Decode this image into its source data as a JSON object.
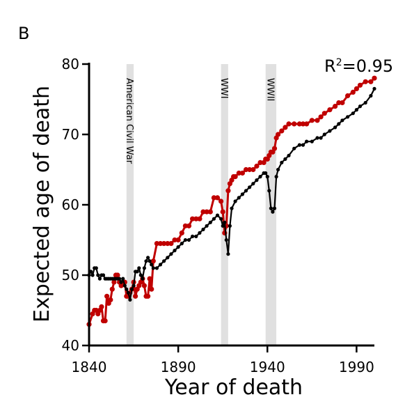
{
  "panel_label": "B",
  "chart_data": {
    "type": "line",
    "xlabel": "Year of death",
    "ylabel": "Expected age of death",
    "xlim": [
      1840,
      2000
    ],
    "ylim": [
      40,
      80
    ],
    "xticks": [
      1840,
      1890,
      1940,
      1990
    ],
    "yticks": [
      40,
      50,
      60,
      70,
      80
    ],
    "grid": false,
    "annotation": {
      "prefix": "R",
      "superscript": "2",
      "suffix": "=0.95"
    },
    "events": [
      {
        "label": "American Civil War",
        "start": 1861,
        "end": 1865
      },
      {
        "label": "WWI",
        "start": 1914,
        "end": 1918
      },
      {
        "label": "WWII",
        "start": 1939,
        "end": 1945
      }
    ],
    "colors": {
      "series_red": "#c00000",
      "series_black": "#000000",
      "shade": "#e0e0e0"
    },
    "series": [
      {
        "color": "#c00000",
        "x": [
          1840,
          1842,
          1843,
          1844,
          1845,
          1846,
          1847,
          1848,
          1849,
          1850,
          1851,
          1852,
          1853,
          1854,
          1855,
          1856,
          1857,
          1858,
          1859,
          1860,
          1861,
          1862,
          1863,
          1864,
          1865,
          1866,
          1867,
          1868,
          1869,
          1870,
          1871,
          1872,
          1873,
          1874,
          1875,
          1876,
          1878,
          1880,
          1882,
          1884,
          1886,
          1888,
          1890,
          1892,
          1894,
          1896,
          1898,
          1900,
          1902,
          1904,
          1906,
          1908,
          1910,
          1912,
          1914,
          1915,
          1916,
          1917,
          1918,
          1919,
          1920,
          1921,
          1922,
          1924,
          1926,
          1928,
          1930,
          1932,
          1934,
          1936,
          1938,
          1939,
          1940,
          1941,
          1942,
          1943,
          1944,
          1945,
          1946,
          1948,
          1950,
          1952,
          1955,
          1958,
          1960,
          1962,
          1965,
          1968,
          1970,
          1972,
          1975,
          1978,
          1980,
          1982,
          1985,
          1988,
          1990,
          1992,
          1995,
          1998,
          2000
        ],
        "y": [
          43,
          44.5,
          45,
          45,
          44.5,
          45,
          45.5,
          43.5,
          43.5,
          47,
          46,
          46.5,
          48,
          49,
          50,
          50,
          49,
          48.5,
          49,
          49,
          47,
          47,
          47.5,
          48,
          49,
          47,
          48,
          48.5,
          49,
          49.5,
          48.5,
          47,
          47,
          49.5,
          48,
          52,
          54.5,
          54.5,
          54.5,
          54.5,
          54.5,
          55,
          55,
          56,
          57,
          57,
          58,
          58,
          58,
          59,
          59,
          59,
          61,
          61,
          60.5,
          59,
          56,
          57,
          62,
          63,
          63.5,
          64,
          64,
          64.5,
          64.5,
          65,
          65,
          65,
          65.5,
          66,
          66,
          66.5,
          66.5,
          67,
          67.5,
          67.5,
          68,
          69.5,
          70,
          70.5,
          71,
          71.5,
          71.5,
          71.5,
          71.5,
          71.5,
          72,
          72,
          72.5,
          73,
          73.5,
          74,
          74.5,
          74.5,
          75.5,
          76,
          76.5,
          77,
          77.5,
          77.5,
          78
        ]
      },
      {
        "color": "#000000",
        "x": [
          1840,
          1841,
          1842,
          1843,
          1844,
          1845,
          1846,
          1847,
          1848,
          1849,
          1850,
          1851,
          1852,
          1853,
          1854,
          1855,
          1856,
          1857,
          1858,
          1859,
          1860,
          1861,
          1862,
          1863,
          1864,
          1865,
          1866,
          1867,
          1868,
          1869,
          1870,
          1871,
          1872,
          1873,
          1874,
          1875,
          1876,
          1878,
          1880,
          1882,
          1884,
          1886,
          1888,
          1890,
          1892,
          1894,
          1896,
          1898,
          1900,
          1902,
          1904,
          1906,
          1908,
          1910,
          1912,
          1914,
          1915,
          1916,
          1917,
          1918,
          1919,
          1920,
          1922,
          1924,
          1926,
          1928,
          1930,
          1932,
          1934,
          1936,
          1938,
          1939,
          1940,
          1941,
          1942,
          1943,
          1944,
          1945,
          1946,
          1948,
          1950,
          1952,
          1955,
          1958,
          1960,
          1962,
          1965,
          1968,
          1970,
          1972,
          1975,
          1978,
          1980,
          1982,
          1985,
          1988,
          1990,
          1992,
          1995,
          1998,
          2000
        ],
        "y": [
          50,
          50.5,
          50,
          51,
          51,
          50,
          49.5,
          50,
          50,
          49.5,
          49.5,
          49.5,
          49.5,
          49.5,
          49.5,
          49.5,
          49.5,
          49.5,
          49,
          49.5,
          48.5,
          48,
          47.5,
          46.5,
          48,
          48.5,
          50.5,
          50.5,
          51,
          50,
          49.5,
          51,
          52,
          52.5,
          52,
          51.5,
          51,
          51,
          51.5,
          52,
          52.5,
          53,
          53.5,
          54,
          54.5,
          55,
          55,
          55.5,
          55.5,
          56,
          56.5,
          57,
          57.5,
          58,
          58.5,
          58,
          57,
          57.5,
          55,
          53,
          57,
          59.5,
          60.5,
          61,
          61.5,
          62,
          62.5,
          63,
          63.5,
          64,
          64.5,
          64.5,
          64,
          62,
          59.5,
          59,
          59.5,
          64,
          65,
          66,
          66.5,
          67,
          68,
          68.5,
          68.5,
          69,
          69,
          69.5,
          69.5,
          70,
          70.5,
          71,
          71.5,
          72,
          72.5,
          73,
          73.5,
          74,
          74.5,
          75.5,
          76.5
        ]
      }
    ]
  }
}
